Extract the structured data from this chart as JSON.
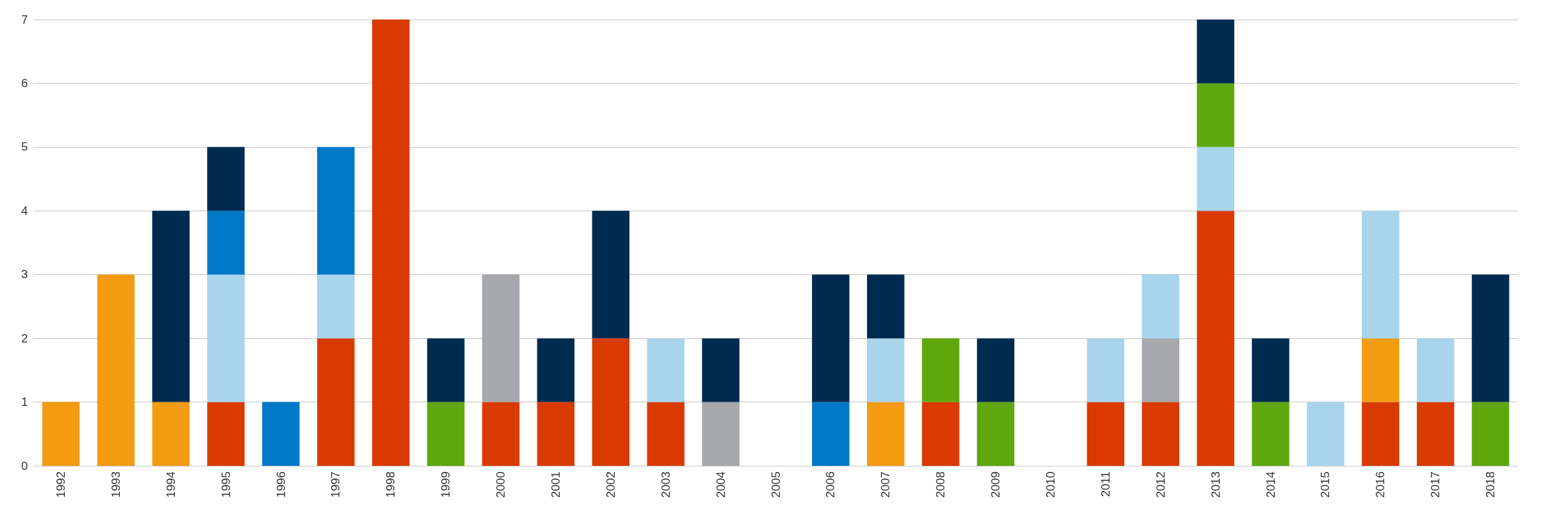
{
  "chart_data": {
    "type": "bar",
    "stacked": true,
    "categories": [
      "1992",
      "1993",
      "1994",
      "1995",
      "1996",
      "1997",
      "1998",
      "1999",
      "2000",
      "2001",
      "2002",
      "2003",
      "2004",
      "2005",
      "2006",
      "2007",
      "2008",
      "2009",
      "2010",
      "2011",
      "2012",
      "2013",
      "2014",
      "2015",
      "2016",
      "2017",
      "2018"
    ],
    "series": [
      {
        "color": "#d93a00",
        "values": [
          null,
          null,
          null,
          1,
          null,
          2,
          7,
          null,
          1,
          1,
          2,
          1,
          null,
          null,
          null,
          null,
          1,
          null,
          null,
          1,
          1,
          4,
          null,
          null,
          1,
          1,
          null
        ]
      },
      {
        "color": "#f39c12",
        "values": [
          1,
          3,
          1,
          null,
          null,
          null,
          null,
          null,
          null,
          null,
          null,
          null,
          null,
          null,
          null,
          1,
          null,
          null,
          null,
          null,
          null,
          null,
          null,
          null,
          1,
          null,
          null
        ]
      },
      {
        "color": "#a6a8ab",
        "values": [
          null,
          null,
          null,
          null,
          null,
          null,
          null,
          null,
          2,
          null,
          null,
          null,
          1,
          null,
          null,
          null,
          null,
          null,
          null,
          null,
          1,
          null,
          null,
          null,
          null,
          null,
          null
        ]
      },
      {
        "color": "#a8d4ec",
        "values": [
          null,
          null,
          null,
          2,
          null,
          1,
          null,
          null,
          null,
          null,
          null,
          1,
          null,
          null,
          null,
          1,
          null,
          null,
          null,
          1,
          1,
          1,
          null,
          1,
          2,
          1,
          null
        ]
      },
      {
        "color": "#5ea80d",
        "values": [
          null,
          null,
          null,
          null,
          null,
          null,
          null,
          1,
          null,
          null,
          null,
          null,
          null,
          null,
          null,
          null,
          1,
          1,
          null,
          null,
          null,
          1,
          1,
          null,
          null,
          null,
          1
        ]
      },
      {
        "color": "#0078c8",
        "values": [
          null,
          null,
          null,
          1,
          1,
          2,
          null,
          null,
          null,
          null,
          null,
          null,
          null,
          null,
          1,
          null,
          null,
          null,
          null,
          null,
          null,
          null,
          null,
          null,
          null,
          null,
          null
        ]
      },
      {
        "color": "#002b50",
        "values": [
          null,
          null,
          3,
          1,
          null,
          null,
          null,
          1,
          null,
          1,
          2,
          null,
          1,
          null,
          2,
          1,
          null,
          1,
          null,
          null,
          null,
          1,
          1,
          null,
          null,
          null,
          2
        ]
      }
    ],
    "ylim": [
      0,
      7
    ],
    "yticks": [
      0,
      1,
      2,
      3,
      4,
      5,
      6,
      7
    ],
    "grid": "y"
  }
}
